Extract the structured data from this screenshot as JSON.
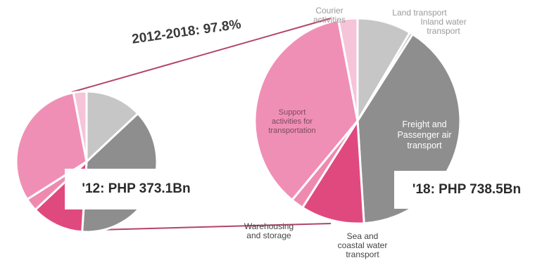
{
  "chart_data": [
    {
      "type": "pie",
      "title": "'12: PHP 373.1Bn",
      "categories": [
        "Land transport",
        "Freight and Passenger air transport",
        "Sea and coastal water transport",
        "Warehousing and storage",
        "Support activities for transportation",
        "Courier activities"
      ],
      "values": [
        13,
        38,
        12,
        3,
        31,
        3
      ],
      "colors": [
        "#c6c6c6",
        "#8e8e8e",
        "#e0497e",
        "#ee8ab0",
        "#f08fb6",
        "#f6c4d8"
      ]
    },
    {
      "type": "pie",
      "title": "'18: PHP 738.5Bn",
      "categories": [
        "Land transport",
        "Inland water transport",
        "Freight and Passenger air transport",
        "Sea and coastal water transport",
        "Warehousing and storage",
        "Support activities for transportation",
        "Courier activities"
      ],
      "values": [
        8.5,
        0.5,
        40,
        10,
        2,
        36,
        3
      ],
      "colors": [
        "#c6c6c6",
        "#b6b6b6",
        "#8e8e8e",
        "#e0497e",
        "#ee8ab0",
        "#f08fb6",
        "#f6c4d8"
      ]
    }
  ],
  "growth_label": "2012-2018: 97.8%",
  "labels": {
    "courier": "Courier\nactivities",
    "land": "Land transport",
    "inland": "Inland water\ntransport",
    "support": "Support\nactivities for\ntransportation",
    "freight": "Freight and\nPassenger air\ntransport",
    "warehousing": "Warehousing\nand storage",
    "sea": "Sea and\ncoastal water\ntransport"
  }
}
